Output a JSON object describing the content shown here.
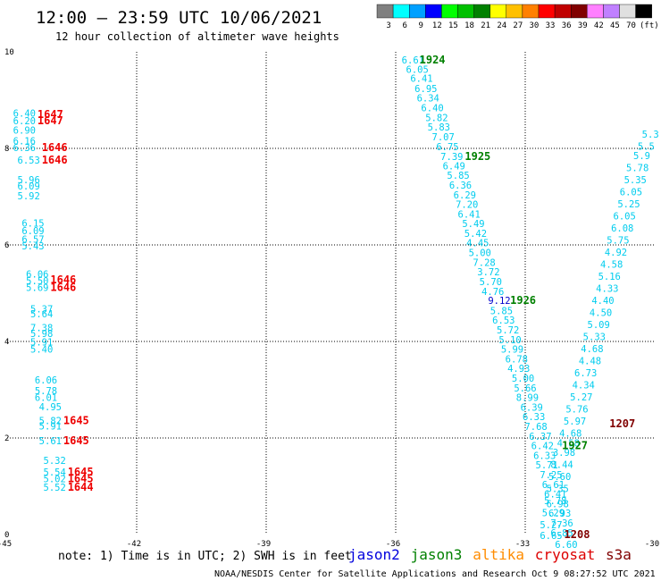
{
  "header": {
    "title": "12:00 – 23:59 UTC 10/06/2021",
    "subtitle": "12 hour collection of altimeter wave heights"
  },
  "colorbar": {
    "unit": "(ft)",
    "entries": [
      {
        "label": "3",
        "color": "#808080"
      },
      {
        "label": "6",
        "color": "#00ffff"
      },
      {
        "label": "9",
        "color": "#00a0ff"
      },
      {
        "label": "12",
        "color": "#0000ff"
      },
      {
        "label": "15",
        "color": "#00ff00"
      },
      {
        "label": "18",
        "color": "#00c000"
      },
      {
        "label": "21",
        "color": "#008000"
      },
      {
        "label": "24",
        "color": "#ffff00"
      },
      {
        "label": "27",
        "color": "#ffc000"
      },
      {
        "label": "30",
        "color": "#ff8000"
      },
      {
        "label": "33",
        "color": "#ff0000"
      },
      {
        "label": "36",
        "color": "#c00000"
      },
      {
        "label": "39",
        "color": "#800000"
      },
      {
        "label": "42",
        "color": "#ff80ff"
      },
      {
        "label": "45",
        "color": "#c080ff"
      },
      {
        "label": "70",
        "color": "#e0e0e0"
      },
      {
        "label": "",
        "color": "#000000"
      }
    ]
  },
  "axes": {
    "x_ticks": [
      "-45",
      "-42",
      "-39",
      "-36",
      "-33",
      "-30"
    ],
    "y_ticks": [
      "10",
      "8",
      "6",
      "4",
      "2",
      "0"
    ],
    "lon_range": [
      -45,
      -30
    ],
    "lat_range": [
      0,
      10
    ]
  },
  "footer": {
    "note": "note: 1) Time is in UTC; 2) SWH is in feet",
    "satellites": [
      {
        "name": "jason2",
        "color": "#0000dd"
      },
      {
        "name": "jason3",
        "color": "#008000"
      },
      {
        "name": "altika",
        "color": "#ff8c00"
      },
      {
        "name": "cryosat",
        "color": "#dd0000"
      },
      {
        "name": "s3a",
        "color": "#800000"
      }
    ],
    "credit": "NOAA/NESDIS Center for Satellite Applications and Research   Oct  9 08:27:52 UTC 2021"
  },
  "colors": {
    "cyan": "#00ccee",
    "blue": "#0000cc",
    "green": "#008000",
    "red": "#ee0000",
    "maroon": "#800000"
  },
  "chart_data": {
    "type": "scatter",
    "title": "12:00 – 23:59 UTC 10/06/2021",
    "subtitle": "12 hour collection of altimeter wave heights",
    "xlim": [
      -45,
      -30
    ],
    "ylim": [
      0,
      10
    ],
    "grid": true,
    "wave_heights": [
      {
        "lon": -44.6,
        "lat": 8.73,
        "v": "6.40",
        "c": "cyan"
      },
      {
        "lon": -44.6,
        "lat": 8.57,
        "v": "6.20",
        "c": "cyan"
      },
      {
        "lon": -44.6,
        "lat": 8.38,
        "v": "6.90",
        "c": "cyan"
      },
      {
        "lon": -44.6,
        "lat": 8.16,
        "v": "6.16",
        "c": "cyan"
      },
      {
        "lon": -44.6,
        "lat": 8.02,
        "v": "6.36",
        "c": "cyan"
      },
      {
        "lon": -44.5,
        "lat": 7.76,
        "v": "6.53",
        "c": "cyan"
      },
      {
        "lon": -44.5,
        "lat": 7.35,
        "v": "5.96",
        "c": "cyan"
      },
      {
        "lon": -44.5,
        "lat": 7.22,
        "v": "6.09",
        "c": "cyan"
      },
      {
        "lon": -44.5,
        "lat": 7.02,
        "v": "5.92",
        "c": "cyan"
      },
      {
        "lon": -44.4,
        "lat": 6.45,
        "v": "6.15",
        "c": "cyan"
      },
      {
        "lon": -44.4,
        "lat": 6.3,
        "v": "6.09",
        "c": "cyan"
      },
      {
        "lon": -44.4,
        "lat": 6.12,
        "v": "6.57",
        "c": "cyan"
      },
      {
        "lon": -44.4,
        "lat": 5.98,
        "v": "5.43",
        "c": "cyan"
      },
      {
        "lon": -44.3,
        "lat": 5.4,
        "v": "6.06",
        "c": "cyan"
      },
      {
        "lon": -44.3,
        "lat": 5.26,
        "v": "5.50",
        "c": "cyan"
      },
      {
        "lon": -44.3,
        "lat": 5.12,
        "v": "5.69",
        "c": "cyan"
      },
      {
        "lon": -44.2,
        "lat": 4.68,
        "v": "5.37",
        "c": "cyan"
      },
      {
        "lon": -44.2,
        "lat": 4.57,
        "v": "5.64",
        "c": "cyan"
      },
      {
        "lon": -44.2,
        "lat": 4.29,
        "v": "7.38",
        "c": "cyan"
      },
      {
        "lon": -44.2,
        "lat": 4.17,
        "v": "5.98",
        "c": "cyan"
      },
      {
        "lon": -44.2,
        "lat": 3.99,
        "v": "5.91",
        "c": "cyan"
      },
      {
        "lon": -44.2,
        "lat": 3.84,
        "v": "5.40",
        "c": "cyan"
      },
      {
        "lon": -44.1,
        "lat": 3.2,
        "v": "6.06",
        "c": "cyan"
      },
      {
        "lon": -44.1,
        "lat": 2.98,
        "v": "5.78",
        "c": "cyan"
      },
      {
        "lon": -44.1,
        "lat": 2.84,
        "v": "6.01",
        "c": "cyan"
      },
      {
        "lon": -44.0,
        "lat": 2.65,
        "v": "4.95",
        "c": "cyan"
      },
      {
        "lon": -44.0,
        "lat": 2.36,
        "v": "5.82",
        "c": "cyan"
      },
      {
        "lon": -44.0,
        "lat": 2.25,
        "v": "5.91",
        "c": "cyan"
      },
      {
        "lon": -44.0,
        "lat": 1.94,
        "v": "5.61",
        "c": "cyan"
      },
      {
        "lon": -43.9,
        "lat": 1.54,
        "v": "5.32",
        "c": "cyan"
      },
      {
        "lon": -43.9,
        "lat": 1.3,
        "v": "5.54",
        "c": "cyan"
      },
      {
        "lon": -43.9,
        "lat": 1.16,
        "v": "5.02",
        "c": "cyan"
      },
      {
        "lon": -43.9,
        "lat": 0.98,
        "v": "5.52",
        "c": "cyan"
      },
      {
        "lon": -44.0,
        "lat": 8.7,
        "v": "1647",
        "c": "red",
        "bold": true
      },
      {
        "lon": -44.0,
        "lat": 8.57,
        "v": "1647",
        "c": "red",
        "bold": true
      },
      {
        "lon": -43.9,
        "lat": 8.02,
        "v": "1646",
        "c": "red",
        "bold": true
      },
      {
        "lon": -43.9,
        "lat": 7.76,
        "v": "1646",
        "c": "red",
        "bold": true
      },
      {
        "lon": -43.7,
        "lat": 5.28,
        "v": "1646",
        "c": "red",
        "bold": true
      },
      {
        "lon": -43.7,
        "lat": 5.12,
        "v": "1646",
        "c": "red",
        "bold": true
      },
      {
        "lon": -43.4,
        "lat": 2.36,
        "v": "1645",
        "c": "red",
        "bold": true
      },
      {
        "lon": -43.4,
        "lat": 1.94,
        "v": "1645",
        "c": "red",
        "bold": true
      },
      {
        "lon": -43.3,
        "lat": 1.3,
        "v": "1645",
        "c": "red",
        "bold": true
      },
      {
        "lon": -43.3,
        "lat": 1.16,
        "v": "1645",
        "c": "red",
        "bold": true
      },
      {
        "lon": -43.3,
        "lat": 0.98,
        "v": "1644",
        "c": "red",
        "bold": true
      },
      {
        "lon": -35.6,
        "lat": 9.83,
        "v": "6.61",
        "c": "cyan"
      },
      {
        "lon": -35.5,
        "lat": 9.64,
        "v": "6.05",
        "c": "cyan"
      },
      {
        "lon": -35.4,
        "lat": 9.45,
        "v": "6.41",
        "c": "cyan"
      },
      {
        "lon": -35.3,
        "lat": 9.24,
        "v": "6.95",
        "c": "cyan"
      },
      {
        "lon": -35.25,
        "lat": 9.05,
        "v": "6.34",
        "c": "cyan"
      },
      {
        "lon": -35.15,
        "lat": 8.84,
        "v": "6.40",
        "c": "cyan"
      },
      {
        "lon": -35.05,
        "lat": 8.64,
        "v": "5.82",
        "c": "cyan"
      },
      {
        "lon": -35.0,
        "lat": 8.44,
        "v": "5.83",
        "c": "cyan"
      },
      {
        "lon": -34.9,
        "lat": 8.24,
        "v": "7.07",
        "c": "cyan"
      },
      {
        "lon": -34.8,
        "lat": 8.04,
        "v": "6.75",
        "c": "cyan"
      },
      {
        "lon": -34.7,
        "lat": 7.83,
        "v": "7.39",
        "c": "cyan"
      },
      {
        "lon": -34.65,
        "lat": 7.64,
        "v": "6.49",
        "c": "cyan"
      },
      {
        "lon": -34.55,
        "lat": 7.44,
        "v": "5.85",
        "c": "cyan"
      },
      {
        "lon": -34.5,
        "lat": 7.24,
        "v": "6.36",
        "c": "cyan"
      },
      {
        "lon": -34.4,
        "lat": 7.04,
        "v": "6.29",
        "c": "cyan"
      },
      {
        "lon": -34.35,
        "lat": 6.84,
        "v": "7.20",
        "c": "cyan"
      },
      {
        "lon": -34.3,
        "lat": 6.64,
        "v": "6.41",
        "c": "cyan"
      },
      {
        "lon": -34.2,
        "lat": 6.44,
        "v": "5.49",
        "c": "cyan"
      },
      {
        "lon": -34.15,
        "lat": 6.24,
        "v": "5.42",
        "c": "cyan"
      },
      {
        "lon": -34.1,
        "lat": 6.05,
        "v": "4.45",
        "c": "cyan"
      },
      {
        "lon": -34.05,
        "lat": 5.84,
        "v": "5.00",
        "c": "cyan"
      },
      {
        "lon": -33.95,
        "lat": 5.64,
        "v": "7.28",
        "c": "cyan"
      },
      {
        "lon": -33.85,
        "lat": 5.44,
        "v": "3.72",
        "c": "cyan"
      },
      {
        "lon": -33.8,
        "lat": 5.24,
        "v": "5.70",
        "c": "cyan"
      },
      {
        "lon": -33.75,
        "lat": 5.04,
        "v": "4.76",
        "c": "cyan"
      },
      {
        "lon": -33.6,
        "lat": 4.85,
        "v": "9.12",
        "c": "blue"
      },
      {
        "lon": -33.55,
        "lat": 4.64,
        "v": "5.85",
        "c": "cyan"
      },
      {
        "lon": -33.5,
        "lat": 4.44,
        "v": "6.53",
        "c": "cyan"
      },
      {
        "lon": -33.4,
        "lat": 4.24,
        "v": "5.72",
        "c": "cyan"
      },
      {
        "lon": -33.35,
        "lat": 4.04,
        "v": "5.10",
        "c": "cyan"
      },
      {
        "lon": -33.3,
        "lat": 3.84,
        "v": "5.99",
        "c": "cyan"
      },
      {
        "lon": -33.2,
        "lat": 3.64,
        "v": "6.78",
        "c": "cyan"
      },
      {
        "lon": -33.15,
        "lat": 3.44,
        "v": "4.93",
        "c": "cyan"
      },
      {
        "lon": -33.05,
        "lat": 3.24,
        "v": "5.00",
        "c": "cyan"
      },
      {
        "lon": -33.0,
        "lat": 3.04,
        "v": "5.66",
        "c": "cyan"
      },
      {
        "lon": -32.95,
        "lat": 2.84,
        "v": "8.99",
        "c": "cyan"
      },
      {
        "lon": -32.85,
        "lat": 2.64,
        "v": "6.39",
        "c": "cyan"
      },
      {
        "lon": -32.8,
        "lat": 2.44,
        "v": "6.33",
        "c": "cyan"
      },
      {
        "lon": -32.75,
        "lat": 2.24,
        "v": "7.68",
        "c": "cyan"
      },
      {
        "lon": -32.65,
        "lat": 2.04,
        "v": "6.37",
        "c": "cyan"
      },
      {
        "lon": -32.6,
        "lat": 1.84,
        "v": "6.42",
        "c": "cyan"
      },
      {
        "lon": -32.55,
        "lat": 1.64,
        "v": "6.33",
        "c": "cyan"
      },
      {
        "lon": -32.5,
        "lat": 1.44,
        "v": "5.71",
        "c": "cyan"
      },
      {
        "lon": -32.4,
        "lat": 1.24,
        "v": "7.25",
        "c": "cyan"
      },
      {
        "lon": -32.35,
        "lat": 1.04,
        "v": "6.61",
        "c": "cyan"
      },
      {
        "lon": -32.3,
        "lat": 0.84,
        "v": "6.41",
        "c": "cyan"
      },
      {
        "lon": -32.25,
        "lat": 0.64,
        "v": "6.98",
        "c": "cyan"
      },
      {
        "lon": -32.2,
        "lat": 0.44,
        "v": "6.93",
        "c": "cyan"
      },
      {
        "lon": -32.15,
        "lat": 0.24,
        "v": "7.36",
        "c": "cyan"
      },
      {
        "lon": -32.15,
        "lat": 0.04,
        "v": "6.85",
        "c": "cyan"
      },
      {
        "lon": -32.05,
        "lat": -0.2,
        "v": "6.60",
        "c": "cyan"
      },
      {
        "lon": -30.1,
        "lat": 8.3,
        "v": "5.3",
        "c": "cyan"
      },
      {
        "lon": -30.2,
        "lat": 8.05,
        "v": "5.5",
        "c": "cyan"
      },
      {
        "lon": -30.3,
        "lat": 7.85,
        "v": "5.9",
        "c": "cyan"
      },
      {
        "lon": -30.4,
        "lat": 7.6,
        "v": "5.78",
        "c": "cyan"
      },
      {
        "lon": -30.45,
        "lat": 7.35,
        "v": "5.35",
        "c": "cyan"
      },
      {
        "lon": -30.55,
        "lat": 7.1,
        "v": "6.05",
        "c": "cyan"
      },
      {
        "lon": -30.6,
        "lat": 6.85,
        "v": "5.25",
        "c": "cyan"
      },
      {
        "lon": -30.7,
        "lat": 6.6,
        "v": "6.05",
        "c": "cyan"
      },
      {
        "lon": -30.75,
        "lat": 6.35,
        "v": "6.08",
        "c": "cyan"
      },
      {
        "lon": -30.85,
        "lat": 6.1,
        "v": "5.75",
        "c": "cyan"
      },
      {
        "lon": -30.9,
        "lat": 5.85,
        "v": "4.92",
        "c": "cyan"
      },
      {
        "lon": -31.0,
        "lat": 5.6,
        "v": "4.58",
        "c": "cyan"
      },
      {
        "lon": -31.05,
        "lat": 5.35,
        "v": "5.16",
        "c": "cyan"
      },
      {
        "lon": -31.1,
        "lat": 5.1,
        "v": "4.33",
        "c": "cyan"
      },
      {
        "lon": -31.2,
        "lat": 4.85,
        "v": "4.40",
        "c": "cyan"
      },
      {
        "lon": -31.25,
        "lat": 4.6,
        "v": "4.50",
        "c": "cyan"
      },
      {
        "lon": -31.3,
        "lat": 4.35,
        "v": "5.09",
        "c": "cyan"
      },
      {
        "lon": -31.4,
        "lat": 4.1,
        "v": "5.33",
        "c": "cyan"
      },
      {
        "lon": -31.45,
        "lat": 3.85,
        "v": "4.68",
        "c": "cyan"
      },
      {
        "lon": -31.5,
        "lat": 3.6,
        "v": "4.48",
        "c": "cyan"
      },
      {
        "lon": -31.6,
        "lat": 3.35,
        "v": "6.73",
        "c": "cyan"
      },
      {
        "lon": -31.65,
        "lat": 3.1,
        "v": "4.34",
        "c": "cyan"
      },
      {
        "lon": -31.7,
        "lat": 2.85,
        "v": "5.27",
        "c": "cyan"
      },
      {
        "lon": -31.8,
        "lat": 2.6,
        "v": "5.76",
        "c": "cyan"
      },
      {
        "lon": -31.85,
        "lat": 2.35,
        "v": "5.97",
        "c": "cyan"
      },
      {
        "lon": -31.95,
        "lat": 2.1,
        "v": "4.68",
        "c": "cyan"
      },
      {
        "lon": -32.0,
        "lat": 1.9,
        "v": "4.58",
        "c": "cyan"
      },
      {
        "lon": -32.1,
        "lat": 1.7,
        "v": "3.98",
        "c": "cyan"
      },
      {
        "lon": -32.15,
        "lat": 1.45,
        "v": "8.44",
        "c": "cyan"
      },
      {
        "lon": -32.2,
        "lat": 1.2,
        "v": "5.60",
        "c": "cyan"
      },
      {
        "lon": -32.25,
        "lat": 0.95,
        "v": "5.35",
        "c": "cyan"
      },
      {
        "lon": -32.3,
        "lat": 0.7,
        "v": "5.78",
        "c": "cyan"
      },
      {
        "lon": -32.35,
        "lat": 0.45,
        "v": "5.29",
        "c": "cyan"
      },
      {
        "lon": -32.4,
        "lat": 0.2,
        "v": "5.27",
        "c": "cyan"
      },
      {
        "lon": -32.4,
        "lat": -0.02,
        "v": "6.65",
        "c": "cyan"
      },
      {
        "lon": -35.15,
        "lat": 9.83,
        "v": "1924",
        "c": "green",
        "bold": true
      },
      {
        "lon": -34.1,
        "lat": 7.83,
        "v": "1925",
        "c": "green",
        "bold": true
      },
      {
        "lon": -33.05,
        "lat": 4.85,
        "v": "1926",
        "c": "green",
        "bold": true
      },
      {
        "lon": -31.85,
        "lat": 1.84,
        "v": "1927",
        "c": "green",
        "bold": true
      },
      {
        "lon": -30.75,
        "lat": 2.3,
        "v": "1207",
        "c": "maroon",
        "bold": true
      },
      {
        "lon": -31.8,
        "lat": 0.0,
        "v": "1208",
        "c": "maroon",
        "bold": true
      }
    ]
  }
}
